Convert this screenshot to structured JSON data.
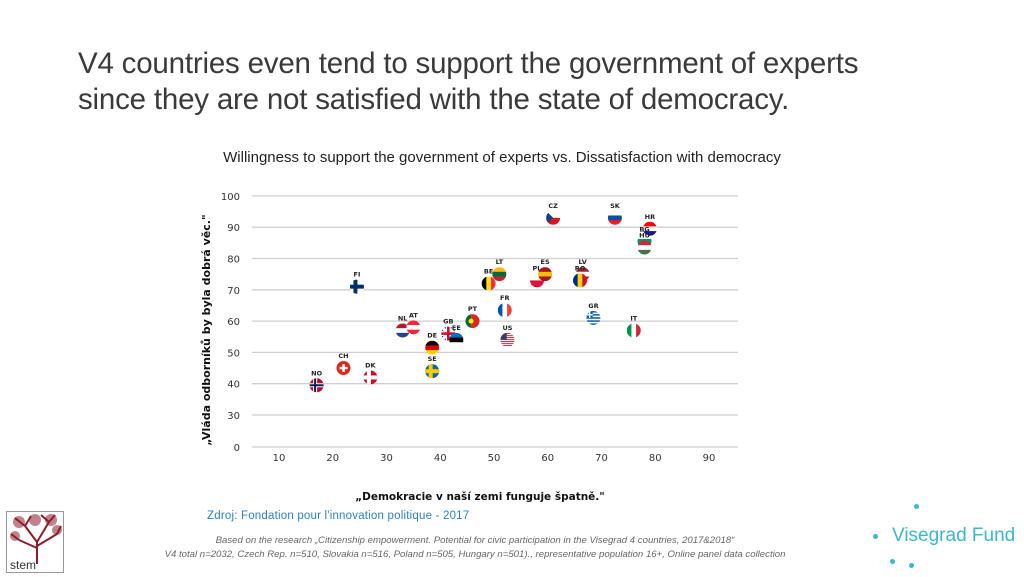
{
  "slide": {
    "title_line1": "V4 countries even tend to support the government of experts",
    "title_line2": "since they are not satisfied with the state of democracy.",
    "subtitle": "Willingness to support the government of experts vs. Dissatisfaction with democracy",
    "source": "Zdroj: Fondation pour l'innovation politique - 2017",
    "footnote_line1": "Based on the research  „Citizenship empowerment. Potential for civic participation in the Visegrad 4 countries, 2017&2018“",
    "footnote_line2": "V4 total n=2032, Czech Rep. n=510, Slovakia n=516, Poland n=505, Hungary n=501)., representative population 16+, Online panel data collection",
    "logo_left": "stem",
    "logo_right": "Visegrad Fund",
    "brand_color": "#3cb6c8"
  },
  "chart_data": {
    "type": "scatter",
    "xlabel": "„Demokracie v naší zemi funguje špatně.\"",
    "ylabel": "„Vláda odborníků by byla dobrá věc.\"",
    "xlim": [
      5,
      95
    ],
    "x_ticks": [
      "10",
      "20",
      "30",
      "40",
      "50",
      "60",
      "70",
      "80",
      "90"
    ],
    "y_ticks": [
      "0",
      "30",
      "40",
      "50",
      "60",
      "70",
      "80",
      "90",
      "100"
    ],
    "grid": "horizontal",
    "points": [
      {
        "label": "NO",
        "x": 17,
        "y": 39.5,
        "flag": {
          "t": "nordic",
          "c": [
            "#ba0c2f",
            "#fff",
            "#00205b"
          ]
        }
      },
      {
        "label": "CH",
        "x": 22,
        "y": 45,
        "flag": {
          "t": "swiss",
          "c": [
            "#d52b1e",
            "#fff"
          ]
        }
      },
      {
        "label": "DK",
        "x": 27,
        "y": 42,
        "flag": {
          "t": "nordic",
          "c": [
            "#c8102e",
            "#fff",
            "#fff"
          ]
        }
      },
      {
        "label": "FI",
        "x": 24.5,
        "y": 71,
        "flag": {
          "t": "nordic",
          "c": [
            "#fff",
            "#002f6c",
            "#002f6c"
          ]
        }
      },
      {
        "label": "NL",
        "x": 33,
        "y": 57,
        "flag": {
          "t": "h",
          "c": [
            "#ae1c28",
            "#fff",
            "#21468b"
          ]
        }
      },
      {
        "label": "AT",
        "x": 35,
        "y": 58,
        "flag": {
          "t": "h",
          "c": [
            "#ed2939",
            "#fff",
            "#ed2939"
          ]
        }
      },
      {
        "label": "DE",
        "x": 38.5,
        "y": 51.5,
        "flag": {
          "t": "h",
          "c": [
            "#000",
            "#dd0000",
            "#ffce00"
          ]
        }
      },
      {
        "label": "SE",
        "x": 38.5,
        "y": 44,
        "flag": {
          "t": "nordic",
          "c": [
            "#006aa7",
            "#fecc00",
            "#fecc00"
          ]
        }
      },
      {
        "label": "GB",
        "x": 41.5,
        "y": 56,
        "flag": {
          "t": "uk",
          "c": [
            "#012169",
            "#fff",
            "#c8102e"
          ]
        }
      },
      {
        "label": "EE",
        "x": 43,
        "y": 54,
        "flag": {
          "t": "h",
          "c": [
            "#0072ce",
            "#000",
            "#fff"
          ]
        }
      },
      {
        "label": "PT",
        "x": 46,
        "y": 60,
        "flag": {
          "t": "v2",
          "c": [
            "#046a38",
            "#da291c"
          ]
        }
      },
      {
        "label": "BE",
        "x": 49,
        "y": 72,
        "flag": {
          "t": "v",
          "c": [
            "#000",
            "#fdda24",
            "#ef3340"
          ]
        }
      },
      {
        "label": "LT",
        "x": 51,
        "y": 75,
        "flag": {
          "t": "h",
          "c": [
            "#fdb913",
            "#006a44",
            "#c1272d"
          ]
        }
      },
      {
        "label": "FR",
        "x": 52,
        "y": 63.5,
        "flag": {
          "t": "v",
          "c": [
            "#0055a4",
            "#fff",
            "#ef4135"
          ]
        }
      },
      {
        "label": "US",
        "x": 52.5,
        "y": 54,
        "flag": {
          "t": "us",
          "c": [
            "#b22234",
            "#fff",
            "#3c3b6e"
          ]
        }
      },
      {
        "label": "PL",
        "x": 58,
        "y": 73,
        "flag": {
          "t": "h2",
          "c": [
            "#fff",
            "#dc143c"
          ]
        }
      },
      {
        "label": "ES",
        "x": 59.5,
        "y": 75,
        "flag": {
          "t": "h",
          "c": [
            "#aa151b",
            "#f1bf00",
            "#aa151b"
          ]
        }
      },
      {
        "label": "CZ",
        "x": 61,
        "y": 93,
        "flag": {
          "t": "cz",
          "c": [
            "#fff",
            "#d7141a",
            "#11457e"
          ]
        }
      },
      {
        "label": "LV",
        "x": 66.5,
        "y": 75,
        "flag": {
          "t": "h",
          "c": [
            "#9e3039",
            "#fff",
            "#9e3039"
          ]
        }
      },
      {
        "label": "RO",
        "x": 66,
        "y": 73,
        "flag": {
          "t": "v",
          "c": [
            "#002b7f",
            "#fcd116",
            "#ce1126"
          ]
        }
      },
      {
        "label": "GR",
        "x": 68.5,
        "y": 61,
        "flag": {
          "t": "gr",
          "c": [
            "#0d5eaf",
            "#fff"
          ]
        }
      },
      {
        "label": "IT",
        "x": 76,
        "y": 57,
        "flag": {
          "t": "v",
          "c": [
            "#009246",
            "#fff",
            "#ce2b37"
          ]
        }
      },
      {
        "label": "SK",
        "x": 72.5,
        "y": 93,
        "flag": {
          "t": "h",
          "c": [
            "#fff",
            "#0b4ea2",
            "#ee1c25"
          ]
        }
      },
      {
        "label": "HR",
        "x": 79,
        "y": 89.5,
        "flag": {
          "t": "h",
          "c": [
            "#ff0000",
            "#fff",
            "#171796"
          ]
        }
      },
      {
        "label": "BG",
        "x": 78,
        "y": 85.5,
        "flag": {
          "t": "h",
          "c": [
            "#fff",
            "#00966e",
            "#d62612"
          ]
        }
      },
      {
        "label": "HU",
        "x": 78,
        "y": 83.5,
        "flag": {
          "t": "h",
          "c": [
            "#ce2939",
            "#fff",
            "#477050"
          ]
        }
      }
    ]
  }
}
